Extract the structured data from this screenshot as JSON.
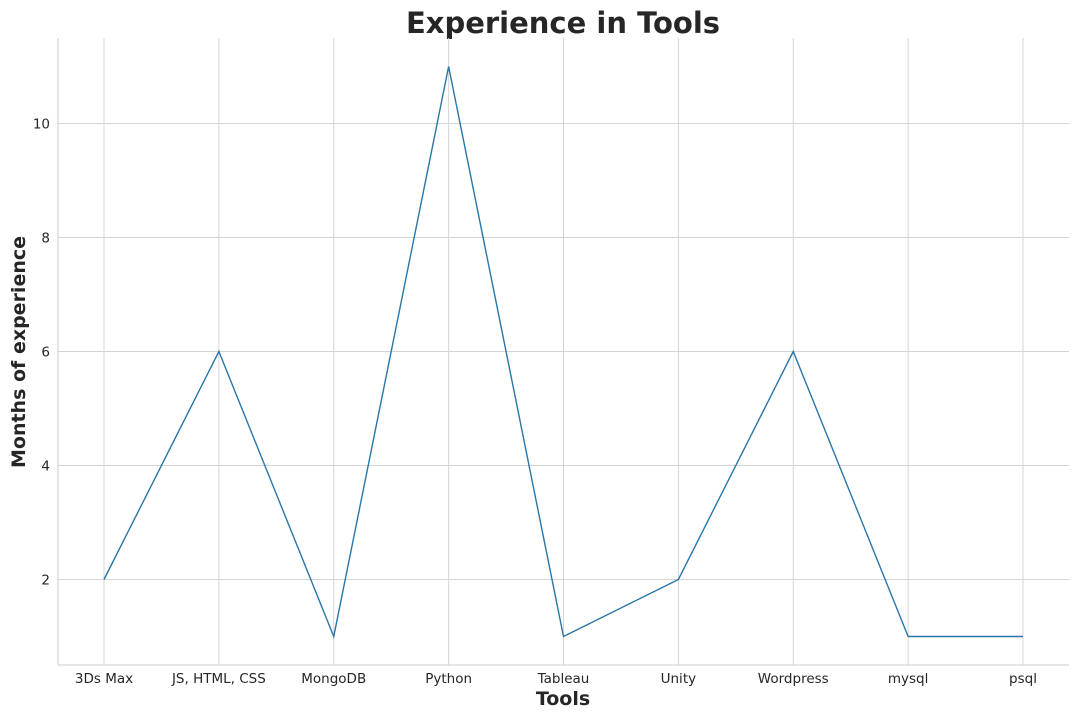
{
  "chart_data": {
    "type": "line",
    "title": "Experience in Tools",
    "xlabel": "Tools",
    "ylabel": "Months of experience",
    "categories": [
      "3Ds Max",
      "JS, HTML, CSS",
      "MongoDB",
      "Python",
      "Tableau",
      "Unity",
      "Wordpress",
      "mysql",
      "psql"
    ],
    "series": [
      {
        "values": [
          2,
          6,
          1,
          11,
          1,
          2,
          6,
          1,
          1
        ],
        "color": "#2a76a8"
      }
    ],
    "ylim": [
      0.5,
      11.5
    ],
    "yticks": [
      2,
      4,
      6,
      8,
      10
    ],
    "grid": true,
    "legend": "none"
  }
}
